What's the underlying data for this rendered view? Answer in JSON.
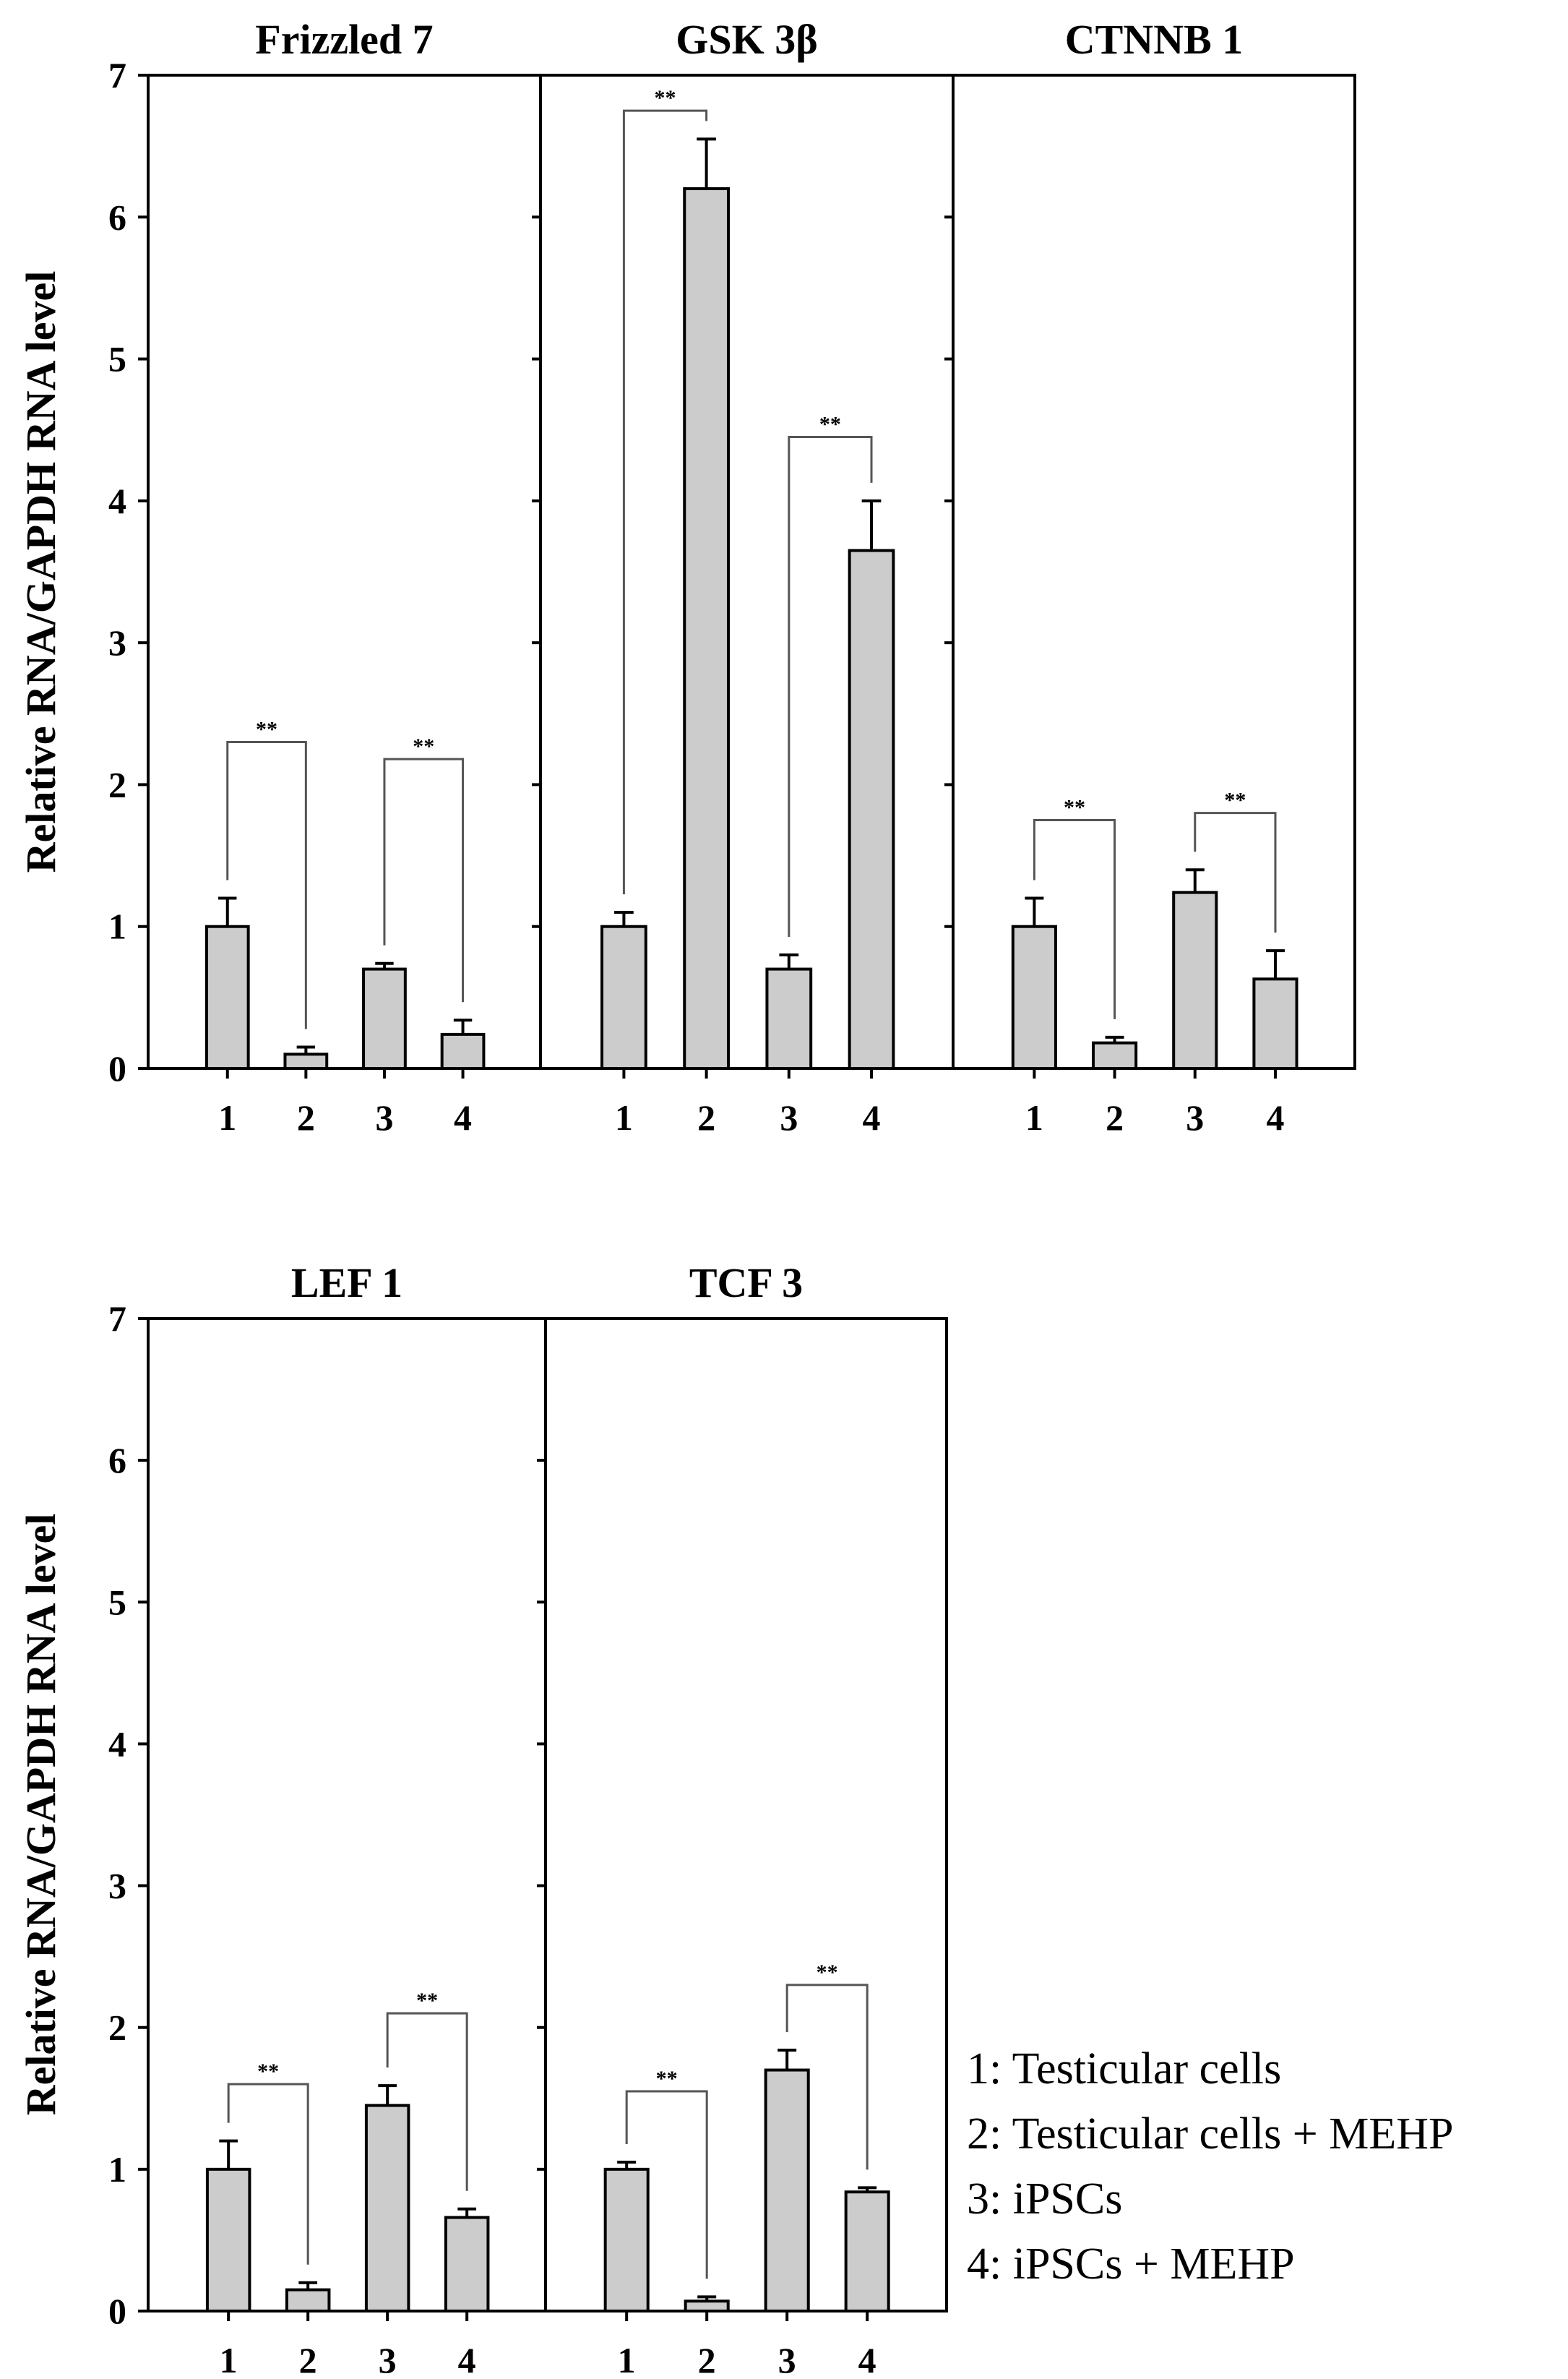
{
  "chart_data": [
    {
      "type": "bar",
      "ylabel": "Relative RNA/GAPDH RNA level",
      "ylim": [
        0,
        7
      ],
      "yticks": [
        "0",
        "1",
        "2",
        "3",
        "4",
        "5",
        "6",
        "7"
      ],
      "categories": [
        "1",
        "2",
        "3",
        "4"
      ],
      "panels": [
        {
          "title": "Frizzled 7",
          "values": [
            1.0,
            0.1,
            0.7,
            0.24
          ],
          "errors": [
            0.2,
            0.05,
            0.04,
            0.1
          ],
          "significance": [
            {
              "from": 0,
              "to": 1,
              "label": "**",
              "y": 2.3
            },
            {
              "from": 2,
              "to": 3,
              "label": "**",
              "y": 2.18
            }
          ]
        },
        {
          "title": "GSK 3β",
          "values": [
            1.0,
            6.2,
            0.7,
            3.65
          ],
          "errors": [
            0.1,
            0.35,
            0.1,
            0.35
          ],
          "significance": [
            {
              "from": 0,
              "to": 1,
              "label": "**",
              "y": 6.75
            },
            {
              "from": 2,
              "to": 3,
              "label": "**",
              "y": 4.45
            }
          ]
        },
        {
          "title": "CTNNB 1",
          "values": [
            1.0,
            0.18,
            1.24,
            0.63
          ],
          "errors": [
            0.2,
            0.04,
            0.16,
            0.2
          ],
          "significance": [
            {
              "from": 0,
              "to": 1,
              "label": "**",
              "y": 1.75
            },
            {
              "from": 2,
              "to": 3,
              "label": "**",
              "y": 1.8
            }
          ]
        }
      ]
    },
    {
      "type": "bar",
      "ylabel": "Relative RNA/GAPDH RNA level",
      "ylim": [
        0,
        7
      ],
      "yticks": [
        "0",
        "1",
        "2",
        "3",
        "4",
        "5",
        "6",
        "7"
      ],
      "categories": [
        "1",
        "2",
        "3",
        "4"
      ],
      "panels": [
        {
          "title": "LEF 1",
          "values": [
            1.0,
            0.15,
            1.45,
            0.66
          ],
          "errors": [
            0.2,
            0.05,
            0.14,
            0.06
          ],
          "significance": [
            {
              "from": 0,
              "to": 1,
              "label": "**",
              "y": 1.6
            },
            {
              "from": 2,
              "to": 3,
              "label": "**",
              "y": 2.1
            }
          ]
        },
        {
          "title": "TCF 3",
          "values": [
            1.0,
            0.07,
            1.7,
            0.84
          ],
          "errors": [
            0.05,
            0.03,
            0.14,
            0.03
          ],
          "significance": [
            {
              "from": 0,
              "to": 1,
              "label": "**",
              "y": 1.55
            },
            {
              "from": 2,
              "to": 3,
              "label": "**",
              "y": 2.3
            }
          ]
        }
      ]
    }
  ],
  "legend": [
    "1: Testicular cells",
    "2: Testicular cells + MEHP",
    "3: iPSCs",
    "4: iPSCs + MEHP"
  ]
}
